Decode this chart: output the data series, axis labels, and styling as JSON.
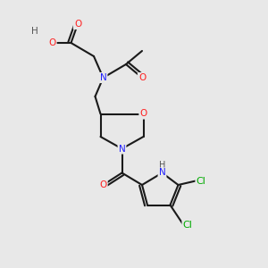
{
  "bg_color": "#e8e8e8",
  "bond_color": "#1a1a1a",
  "bond_width": 1.5,
  "atom_colors": {
    "N": "#2020ff",
    "O": "#ff2020",
    "Cl": "#00aa00",
    "H_label": "#555555",
    "C": "#1a1a1a"
  },
  "font_size": 7.5
}
